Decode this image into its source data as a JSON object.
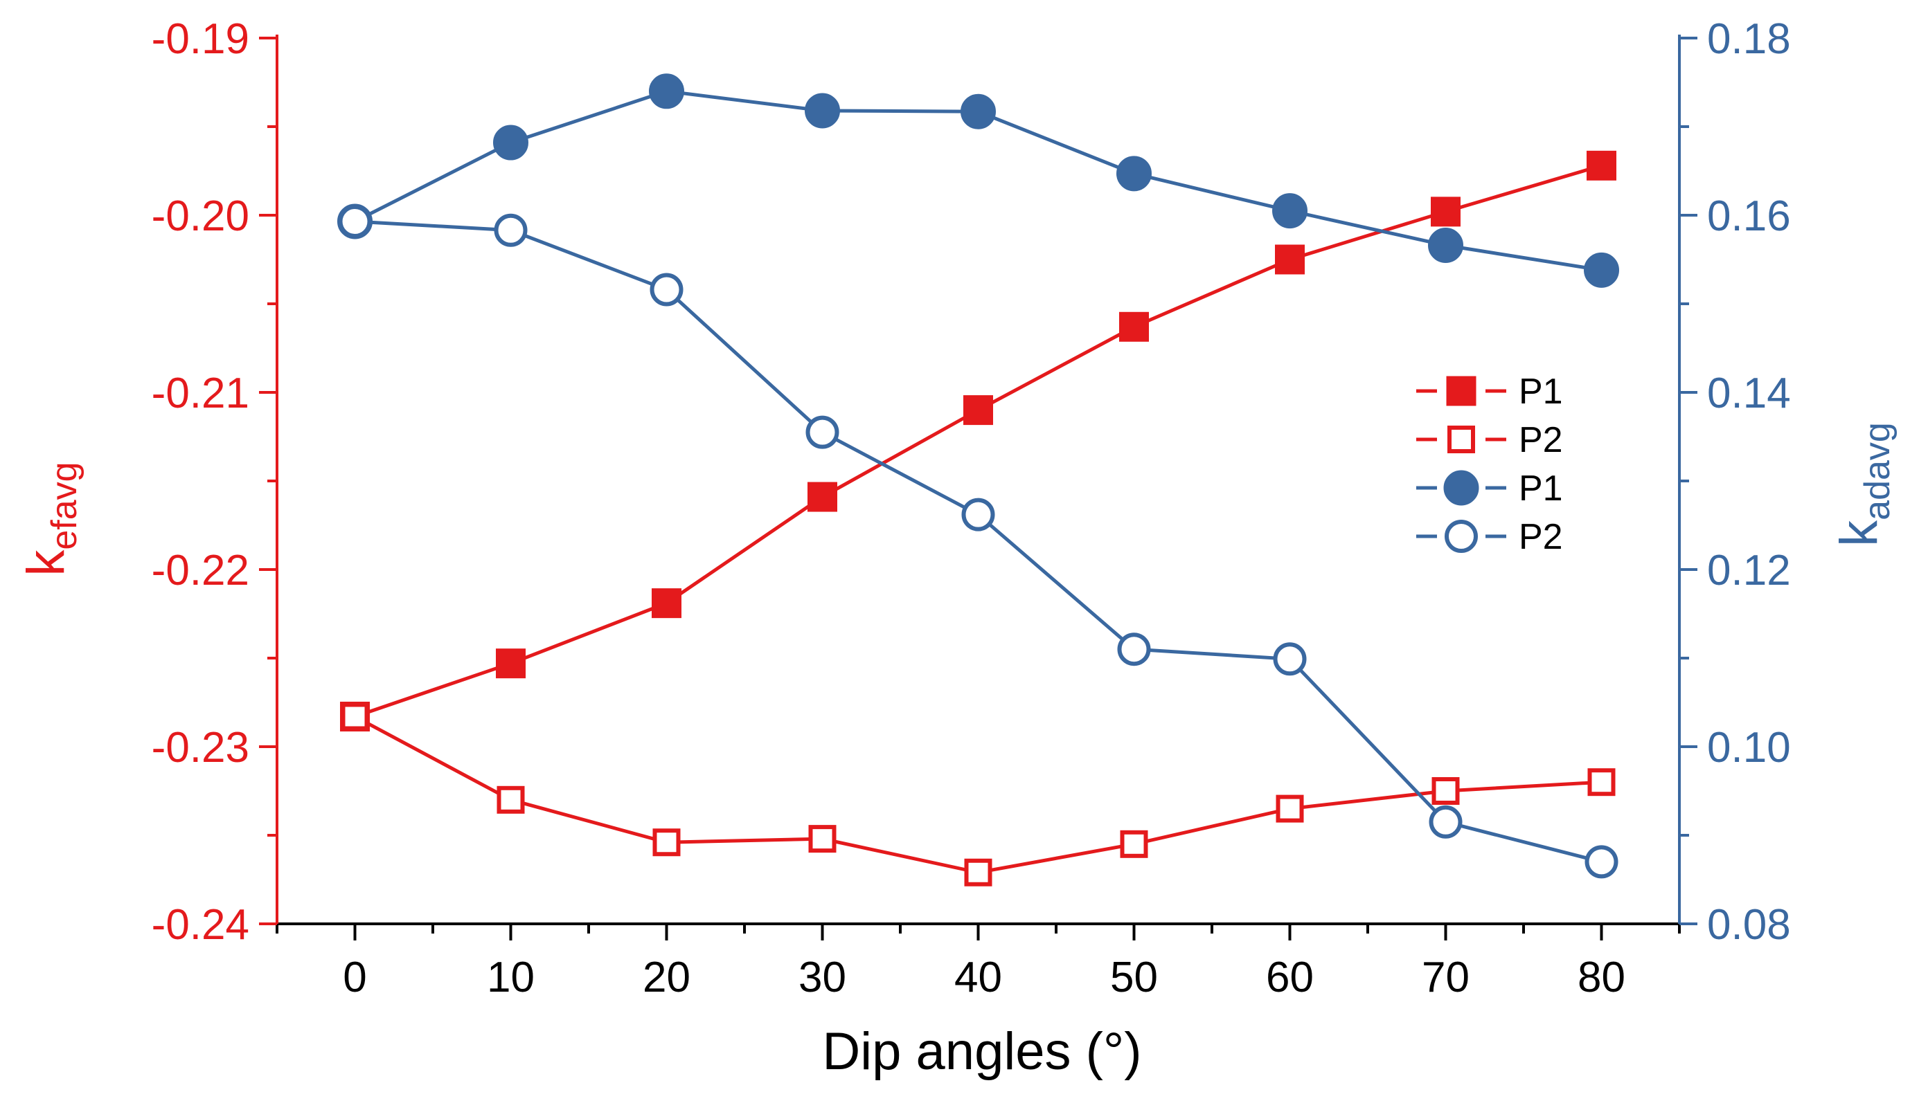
{
  "colors": {
    "left": "#e41a1c",
    "right": "#3a68a0",
    "axis": "#000000"
  },
  "chart_data": {
    "type": "line",
    "title": "",
    "xlabel": "Dip angles (°)",
    "ylabel_left": {
      "base": "k",
      "sub": "efavg"
    },
    "ylabel_right": {
      "base": "k",
      "sub": "adavg"
    },
    "x": [
      0,
      10,
      20,
      30,
      40,
      50,
      60,
      70,
      80
    ],
    "xlim": [
      -5,
      85
    ],
    "x_ticks": [
      "0",
      "10",
      "20",
      "30",
      "40",
      "50",
      "60",
      "70",
      "80"
    ],
    "ylim_left": [
      -0.24,
      -0.19
    ],
    "y_ticks_left": [
      "-0.24",
      "-0.23",
      "-0.22",
      "-0.21",
      "-0.20",
      "-0.19"
    ],
    "ylim_right": [
      0.08,
      0.18
    ],
    "y_ticks_right": [
      "0.08",
      "0.10",
      "0.12",
      "0.14",
      "0.16",
      "0.18"
    ],
    "legend_position": "right-middle",
    "series": [
      {
        "name": "P1",
        "axis": "left",
        "marker": "square-filled",
        "values": [
          -0.2283,
          -0.2253,
          -0.2219,
          -0.2159,
          -0.211,
          -0.2063,
          -0.2025,
          -0.1998,
          -0.1972
        ]
      },
      {
        "name": "P2",
        "axis": "left",
        "marker": "square-open",
        "values": [
          -0.2283,
          -0.233,
          -0.2354,
          -0.2352,
          -0.2371,
          -0.2355,
          -0.2335,
          -0.2325,
          -0.232
        ]
      },
      {
        "name": "P1",
        "axis": "right",
        "marker": "circle-filled",
        "values": [
          0.1593,
          0.1682,
          0.174,
          0.1718,
          0.1717,
          0.1647,
          0.1605,
          0.1566,
          0.1538
        ]
      },
      {
        "name": "P2",
        "axis": "right",
        "marker": "circle-open",
        "values": [
          0.1593,
          0.1583,
          0.1516,
          0.1355,
          0.1262,
          0.111,
          0.1099,
          0.0915,
          0.087
        ]
      }
    ]
  }
}
